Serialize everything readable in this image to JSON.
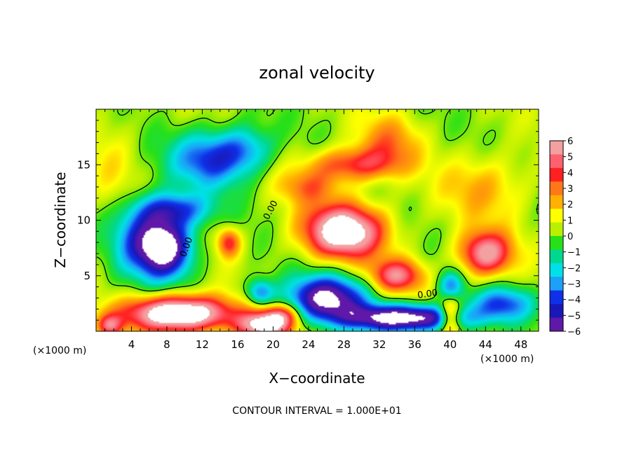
{
  "chart_data": {
    "type": "heatmap",
    "title": "zonal velocity",
    "xlabel": "X−coordinate",
    "ylabel": "Z−coordinate",
    "x_unit_left": "(×1000 m)",
    "x_unit_right": "(×1000 m)",
    "footer": "CONTOUR INTERVAL = 1.000E+01",
    "contour_label": "0.00",
    "xlim": [
      0,
      50
    ],
    "ylim": [
      0,
      20
    ],
    "x_ticks": [
      4,
      8,
      12,
      16,
      20,
      24,
      28,
      32,
      36,
      40,
      44,
      48
    ],
    "y_ticks": [
      5,
      10,
      15
    ],
    "colorbar": {
      "ticks": [
        6,
        5,
        4,
        3,
        2,
        1,
        0,
        -1,
        -2,
        -3,
        -4,
        -5,
        -6
      ],
      "tick_labels": [
        "6",
        "5",
        "4",
        "3",
        "2",
        "1",
        "0",
        "−1",
        "−2",
        "−3",
        "−4",
        "−5",
        "−6"
      ],
      "colors": [
        "#f3a0a0",
        "#ff6070",
        "#ff2020",
        "#ff7818",
        "#ffb000",
        "#ffff00",
        "#b8f000",
        "#28e018",
        "#00d890",
        "#00e0e8",
        "#1ca0f8",
        "#1030e8",
        "#1818b8",
        "#6018a8"
      ],
      "saturation_color": "#ffffff"
    },
    "field_sources": [
      {
        "x": 13,
        "y": 15.5,
        "sx": 4.5,
        "sy": 2.5,
        "amp": -4.5
      },
      {
        "x": 17,
        "y": 16.5,
        "sx": 3,
        "sy": 2,
        "amp": -2.5
      },
      {
        "x": 9,
        "y": 11,
        "sx": 4,
        "sy": 1.5,
        "amp": -4
      },
      {
        "x": 5,
        "y": 8.5,
        "sx": 3.5,
        "sy": 3.5,
        "amp": -4
      },
      {
        "x": 8,
        "y": 7.5,
        "sx": 3,
        "sy": 2.6,
        "amp": -7
      },
      {
        "x": 9.5,
        "y": 1.6,
        "sx": 6,
        "sy": 1.6,
        "amp": 9
      },
      {
        "x": 1.5,
        "y": 0.5,
        "sx": 1.5,
        "sy": 1,
        "amp": 4
      },
      {
        "x": 15,
        "y": 8,
        "sx": 1.3,
        "sy": 1.3,
        "amp": 4
      },
      {
        "x": 18.5,
        "y": 3.5,
        "sx": 1.5,
        "sy": 1.2,
        "amp": -4
      },
      {
        "x": 21,
        "y": 1.5,
        "sx": 2,
        "sy": 1,
        "amp": 4
      },
      {
        "x": 19,
        "y": 0.5,
        "sx": 3,
        "sy": 1.2,
        "amp": 7
      },
      {
        "x": 26,
        "y": 3,
        "sx": 4.5,
        "sy": 2,
        "amp": -7
      },
      {
        "x": 28,
        "y": 9,
        "sx": 4.5,
        "sy": 2.4,
        "amp": 8
      },
      {
        "x": 29,
        "y": 15,
        "sx": 5,
        "sy": 1.5,
        "amp": 4
      },
      {
        "x": 33,
        "y": 17,
        "sx": 3.5,
        "sy": 2.5,
        "amp": 2.5
      },
      {
        "x": 34,
        "y": 5,
        "sx": 3,
        "sy": 1.5,
        "amp": 5
      },
      {
        "x": 35,
        "y": 1.2,
        "sx": 7,
        "sy": 1.2,
        "amp": -8
      },
      {
        "x": 40,
        "y": 1.5,
        "sx": 1.2,
        "sy": 1.8,
        "amp": 5
      },
      {
        "x": 40,
        "y": 4,
        "sx": 1.4,
        "sy": 1.4,
        "amp": -4
      },
      {
        "x": 44,
        "y": 7,
        "sx": 3,
        "sy": 2,
        "amp": 6
      },
      {
        "x": 46,
        "y": 2.5,
        "sx": 3.5,
        "sy": 1.5,
        "amp": -4
      },
      {
        "x": 44,
        "y": 13,
        "sx": 5,
        "sy": 3,
        "amp": 2
      },
      {
        "x": 2,
        "y": 14,
        "sx": 3,
        "sy": 6,
        "amp": 1
      },
      {
        "x": 24,
        "y": 13,
        "sx": 3.5,
        "sy": 1.5,
        "amp": 2.5
      }
    ]
  }
}
